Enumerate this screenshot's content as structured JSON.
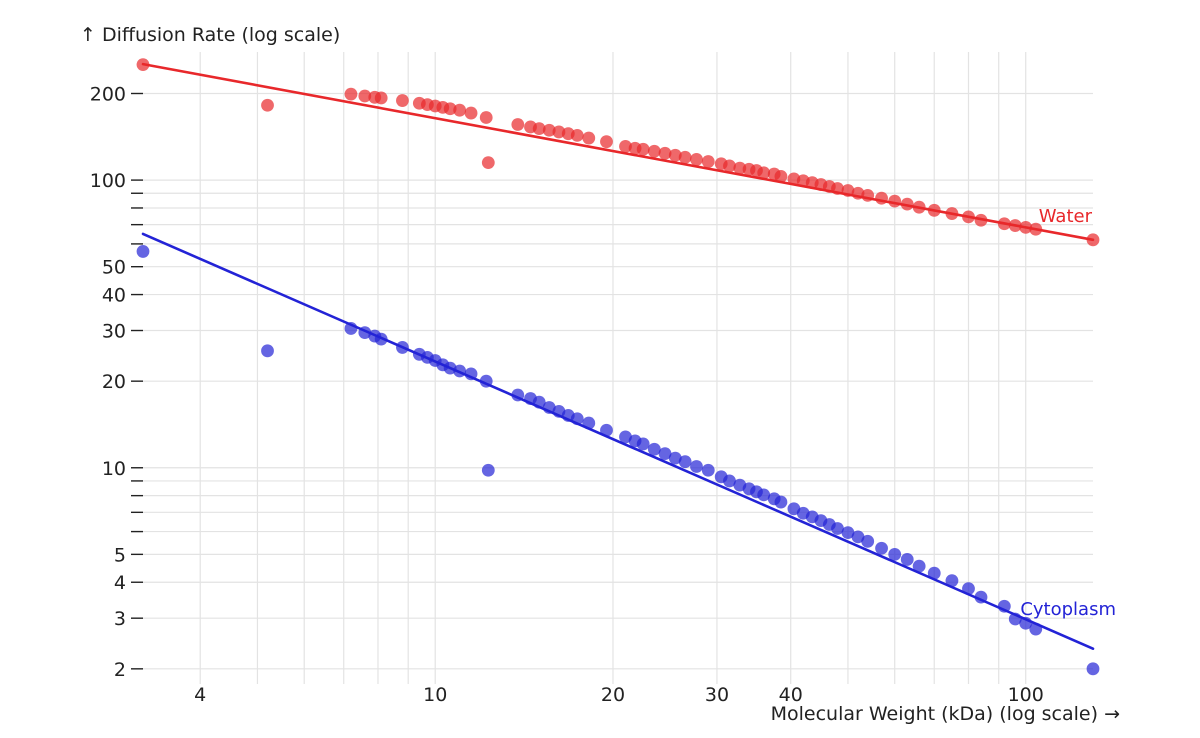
{
  "chart_data": {
    "type": "scatter",
    "title": "",
    "xlabel": "Molecular Weight (kDa) (log scale) →",
    "ylabel": "↑ Diffusion Rate (log scale)",
    "xscale": "log",
    "yscale": "log",
    "xlim": [
      3.2,
      130
    ],
    "ylim": [
      1.95,
      270
    ],
    "x_ticks": [
      4,
      10,
      20,
      30,
      40,
      100
    ],
    "x_tick_labels": [
      "4",
      "10",
      "20",
      "30",
      "40",
      "100"
    ],
    "x_grid": [
      4,
      5,
      6,
      7,
      8,
      9,
      10,
      20,
      30,
      40,
      50,
      60,
      70,
      80,
      90,
      100
    ],
    "y_ticks": [
      2,
      3,
      4,
      5,
      10,
      20,
      30,
      40,
      50,
      100,
      200
    ],
    "y_tick_labels": [
      "2",
      "3",
      "4",
      "5",
      "10",
      "20",
      "30",
      "40",
      "50",
      "100",
      "200"
    ],
    "y_grid": [
      2,
      3,
      4,
      5,
      6,
      7,
      8,
      9,
      10,
      20,
      30,
      40,
      50,
      60,
      70,
      80,
      90,
      100,
      200
    ],
    "grid": true,
    "series": [
      {
        "name": "Water",
        "color": "#e8282b",
        "fit": {
          "x0": 3.2,
          "y0": 253,
          "x1": 130,
          "y1": 62
        },
        "points": [
          [
            3.2,
            252
          ],
          [
            5.2,
            182
          ],
          [
            7.2,
            199
          ],
          [
            7.6,
            196
          ],
          [
            7.9,
            194
          ],
          [
            8.1,
            193
          ],
          [
            8.8,
            189
          ],
          [
            9.4,
            185
          ],
          [
            9.7,
            183
          ],
          [
            10.0,
            181
          ],
          [
            10.3,
            179
          ],
          [
            10.6,
            177
          ],
          [
            11.0,
            175
          ],
          [
            11.5,
            171
          ],
          [
            12.2,
            165
          ],
          [
            12.3,
            115
          ],
          [
            13.8,
            156
          ],
          [
            14.5,
            153
          ],
          [
            15.0,
            151
          ],
          [
            15.6,
            149
          ],
          [
            16.2,
            147
          ],
          [
            16.8,
            145
          ],
          [
            17.4,
            143
          ],
          [
            18.2,
            140
          ],
          [
            19.5,
            136
          ],
          [
            21.0,
            131
          ],
          [
            21.8,
            129
          ],
          [
            22.5,
            128
          ],
          [
            23.5,
            126
          ],
          [
            24.5,
            124
          ],
          [
            25.5,
            122
          ],
          [
            26.5,
            120
          ],
          [
            27.7,
            118
          ],
          [
            29.0,
            116
          ],
          [
            30.5,
            114
          ],
          [
            31.5,
            112
          ],
          [
            32.8,
            110
          ],
          [
            34.0,
            109
          ],
          [
            35.0,
            108
          ],
          [
            36.0,
            106
          ],
          [
            37.5,
            105
          ],
          [
            38.5,
            103
          ],
          [
            40.5,
            101
          ],
          [
            42.0,
            99.5
          ],
          [
            43.5,
            98
          ],
          [
            45.0,
            96.5
          ],
          [
            46.5,
            95
          ],
          [
            48.0,
            93.5
          ],
          [
            50.0,
            92
          ],
          [
            52.0,
            90
          ],
          [
            54.0,
            88.5
          ],
          [
            57.0,
            86.5
          ],
          [
            60.0,
            84.5
          ],
          [
            63.0,
            82.5
          ],
          [
            66.0,
            80.5
          ],
          [
            70.0,
            78.5
          ],
          [
            75.0,
            76.5
          ],
          [
            80.0,
            74.5
          ],
          [
            84.0,
            72.5
          ],
          [
            92.0,
            70.5
          ],
          [
            96.0,
            69.5
          ],
          [
            100.0,
            68.5
          ],
          [
            104.0,
            67.5
          ],
          [
            130.0,
            62
          ]
        ]
      },
      {
        "name": "Cytoplasm",
        "color": "#2323d6",
        "fit": {
          "x0": 3.2,
          "y0": 65,
          "x1": 130,
          "y1": 2.35
        },
        "points": [
          [
            3.2,
            56.5
          ],
          [
            5.2,
            25.5
          ],
          [
            7.2,
            30.5
          ],
          [
            7.6,
            29.5
          ],
          [
            7.9,
            28.7
          ],
          [
            8.1,
            28
          ],
          [
            8.8,
            26.2
          ],
          [
            9.4,
            24.8
          ],
          [
            9.7,
            24.2
          ],
          [
            10.0,
            23.6
          ],
          [
            10.3,
            22.8
          ],
          [
            10.6,
            22.2
          ],
          [
            11.0,
            21.7
          ],
          [
            11.5,
            21.2
          ],
          [
            12.2,
            20
          ],
          [
            12.3,
            9.8
          ],
          [
            13.8,
            17.9
          ],
          [
            14.5,
            17.4
          ],
          [
            15.0,
            16.9
          ],
          [
            15.6,
            16.2
          ],
          [
            16.2,
            15.7
          ],
          [
            16.8,
            15.2
          ],
          [
            17.4,
            14.8
          ],
          [
            18.2,
            14.3
          ],
          [
            19.5,
            13.5
          ],
          [
            21.0,
            12.8
          ],
          [
            21.8,
            12.4
          ],
          [
            22.5,
            12.1
          ],
          [
            23.5,
            11.6
          ],
          [
            24.5,
            11.2
          ],
          [
            25.5,
            10.8
          ],
          [
            26.5,
            10.5
          ],
          [
            27.7,
            10.1
          ],
          [
            29.0,
            9.8
          ],
          [
            30.5,
            9.3
          ],
          [
            31.5,
            9.0
          ],
          [
            32.8,
            8.7
          ],
          [
            34.0,
            8.45
          ],
          [
            35.0,
            8.25
          ],
          [
            36.0,
            8.05
          ],
          [
            37.5,
            7.8
          ],
          [
            38.5,
            7.6
          ],
          [
            40.5,
            7.2
          ],
          [
            42.0,
            6.95
          ],
          [
            43.5,
            6.75
          ],
          [
            45.0,
            6.55
          ],
          [
            46.5,
            6.35
          ],
          [
            48.0,
            6.15
          ],
          [
            50.0,
            5.95
          ],
          [
            52.0,
            5.75
          ],
          [
            54.0,
            5.55
          ],
          [
            57.0,
            5.25
          ],
          [
            60.0,
            5.0
          ],
          [
            63.0,
            4.8
          ],
          [
            66.0,
            4.55
          ],
          [
            70.0,
            4.3
          ],
          [
            75.0,
            4.05
          ],
          [
            80.0,
            3.8
          ],
          [
            84.0,
            3.55
          ],
          [
            92.0,
            3.3
          ],
          [
            96.0,
            2.98
          ],
          [
            100.0,
            2.88
          ],
          [
            104.0,
            2.75
          ],
          [
            130.0,
            2.0
          ]
        ]
      }
    ]
  }
}
